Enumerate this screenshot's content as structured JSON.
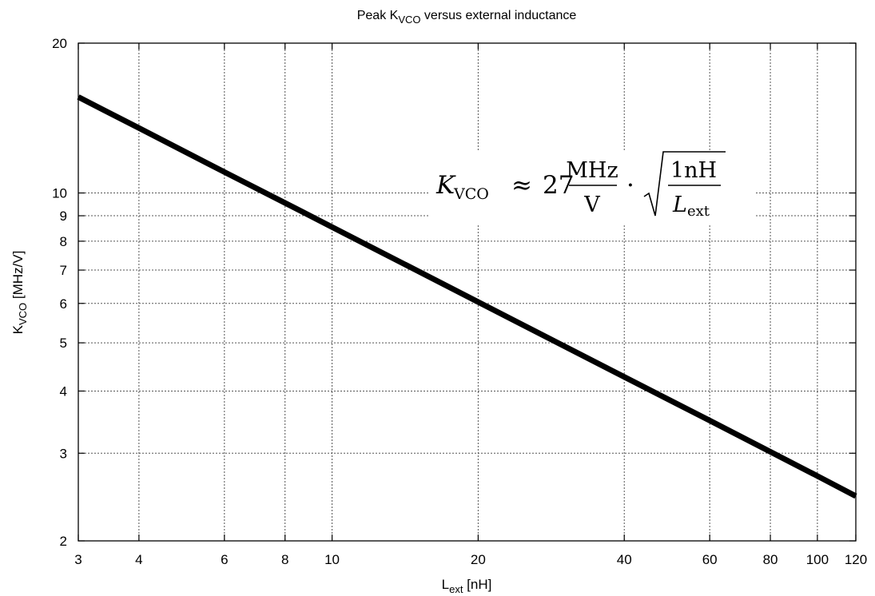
{
  "chart_data": {
    "type": "line",
    "title": {
      "prefix": "Peak K",
      "subscript": "VCO",
      "suffix": " versus external inductance"
    },
    "xlabel": {
      "main": "L",
      "subscript": "ext",
      "unit": " [nH]"
    },
    "ylabel": {
      "main": "K",
      "subscript": "VCO",
      "unit": " [MHz/V]"
    },
    "xscale": "log",
    "yscale": "log",
    "xlim": [
      3,
      120
    ],
    "ylim": [
      2,
      20
    ],
    "grid": true,
    "x_ticks": [
      3,
      4,
      6,
      8,
      10,
      20,
      40,
      60,
      80,
      100,
      120
    ],
    "x_tick_labels": [
      "3",
      "4",
      "6",
      "8",
      "10",
      "20",
      "40",
      "60",
      "80",
      "100",
      "120"
    ],
    "y_ticks": [
      2,
      3,
      4,
      5,
      6,
      7,
      8,
      9,
      10,
      20
    ],
    "y_tick_labels": [
      "2",
      "3",
      "4",
      "5",
      "6",
      "7",
      "8",
      "9",
      "10",
      "20"
    ],
    "series": [
      {
        "x": [
          3,
          4,
          6,
          8,
          10,
          20,
          40,
          60,
          80,
          100,
          120
        ],
        "y": [
          15.59,
          13.5,
          11.02,
          9.55,
          8.54,
          6.04,
          4.27,
          3.49,
          3.02,
          2.7,
          2.46
        ],
        "color": "#000000"
      }
    ],
    "annotation": {
      "lhs": "K",
      "lhs_sub": "VCO",
      "approx": "≈",
      "coef": "27",
      "frac1_num": "MHz",
      "frac1_den": "V",
      "dot": "·",
      "frac2_num": "1nH",
      "frac2_den": "L",
      "frac2_den_sub": "ext"
    }
  }
}
